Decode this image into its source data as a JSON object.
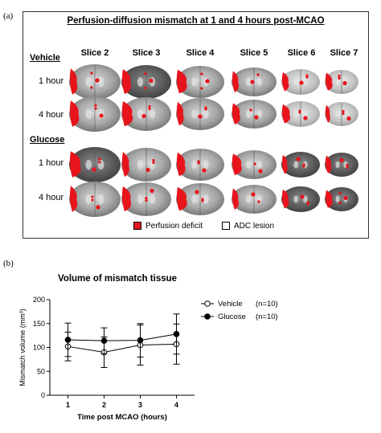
{
  "panel_a": {
    "label": "(a)",
    "title": "Perfusion-diffusion mismatch at 1 and 4 hours post-MCAO",
    "slices": [
      "Slice 2",
      "Slice 3",
      "Slice 4",
      "Slice 5",
      "Slice 6",
      "Slice 7"
    ],
    "groups": [
      {
        "name": "Vehicle",
        "rows": [
          "1 hour",
          "4 hour"
        ]
      },
      {
        "name": "Glucose",
        "rows": [
          "1 hour",
          "4 hour"
        ]
      }
    ],
    "legend": [
      {
        "label": "Perfusion deficit",
        "color": "#e8141c"
      },
      {
        "label": "ADC lesion",
        "color": "#ffffff"
      }
    ]
  },
  "panel_b": {
    "label": "(b)",
    "title": "Volume of mismatch tissue"
  },
  "chart_data": {
    "type": "line",
    "title": "Volume of mismatch tissue",
    "xlabel": "Time post MCAO (hours)",
    "ylabel": "Mismatch volume (mm³)",
    "x": [
      1,
      2,
      3,
      4
    ],
    "xlim": [
      0.5,
      4.5
    ],
    "ylim": [
      0,
      200
    ],
    "yticks": [
      0,
      50,
      100,
      150,
      200
    ],
    "series": [
      {
        "name": "Vehicle",
        "n_label": "(n=10)",
        "marker": "open-circle",
        "values": [
          102,
          90,
          105,
          107
        ],
        "error": [
          30,
          32,
          42,
          42
        ]
      },
      {
        "name": "Glucose",
        "n_label": "(n=10)",
        "marker": "filled-circle",
        "values": [
          116,
          114,
          115,
          128
        ],
        "error": [
          35,
          27,
          35,
          42
        ]
      }
    ],
    "legend_position": "right"
  }
}
